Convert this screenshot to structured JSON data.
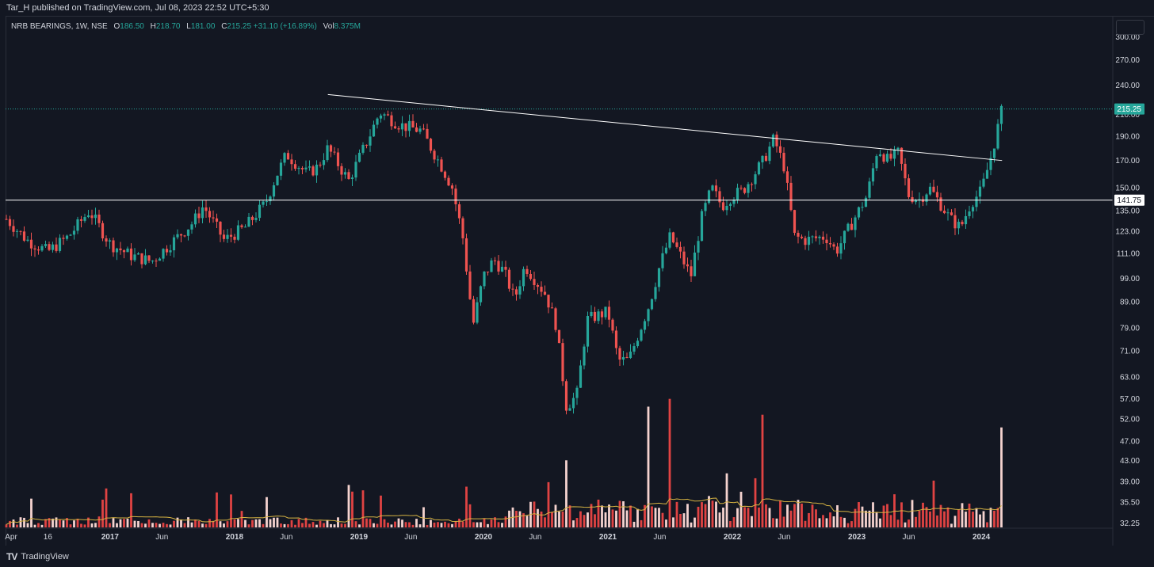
{
  "header": {
    "published_text": "Tar_H published on TradingView.com, Jul 08, 2023 22:52 UTC+5:30"
  },
  "legend": {
    "symbol": "NRB BEARINGS, 1W, NSE",
    "open_label": "O",
    "open": "186.50",
    "high_label": "H",
    "high": "218.70",
    "low_label": "L",
    "low": "181.00",
    "close_label": "C",
    "close": "215.25",
    "change": "+31.10 (+16.89%)",
    "vol_label": "Vol",
    "vol": "8.375M"
  },
  "footer": {
    "brand": "TradingView"
  },
  "chart_data": {
    "type": "candlestick",
    "symbol": "NRB BEARINGS",
    "interval": "1W",
    "exchange": "NSE",
    "scale": "log",
    "ylim": [
      31.5,
      330
    ],
    "price_ticks": [
      "300.00",
      "270.00",
      "240.00",
      "210.00",
      "190.00",
      "170.00",
      "150.00",
      "135.00",
      "123.00",
      "111.00",
      "99.00",
      "89.00",
      "79.00",
      "71.00",
      "63.00",
      "57.00",
      "52.00",
      "47.00",
      "43.00",
      "39.00",
      "35.50",
      "32.25"
    ],
    "x_ticks": [
      "Apr",
      "16",
      "2017",
      "Jun",
      "2018",
      "Jun",
      "2019",
      "Jun",
      "2020",
      "Jun",
      "2021",
      "Jun",
      "2022",
      "Jun",
      "2023",
      "Jun",
      "2024"
    ],
    "last_price": "215.25",
    "horizontal_level": "141.75",
    "trendline": {
      "start": [
        "2018-10",
        230
      ],
      "end": [
        "2024-03",
        170
      ]
    },
    "price_path": [
      [
        "2016-03",
        130
      ],
      [
        "2016-05",
        118
      ],
      [
        "2016-07",
        112
      ],
      [
        "2016-09",
        120
      ],
      [
        "2016-11",
        135
      ],
      [
        "2017-01",
        116
      ],
      [
        "2017-03",
        110
      ],
      [
        "2017-05",
        107
      ],
      [
        "2017-07",
        117
      ],
      [
        "2017-09",
        128
      ],
      [
        "2017-10",
        138
      ],
      [
        "2017-12",
        118
      ],
      [
        "2018-02",
        125
      ],
      [
        "2018-04",
        140
      ],
      [
        "2018-05",
        158
      ],
      [
        "2018-06",
        175
      ],
      [
        "2018-08",
        160
      ],
      [
        "2018-09",
        165
      ],
      [
        "2018-10",
        180
      ],
      [
        "2018-12",
        155
      ],
      [
        "2019-02",
        190
      ],
      [
        "2019-03",
        212
      ],
      [
        "2019-05",
        200
      ],
      [
        "2019-07",
        195
      ],
      [
        "2019-09",
        165
      ],
      [
        "2019-10",
        150
      ],
      [
        "2019-11",
        120
      ],
      [
        "2019-12",
        80
      ],
      [
        "2020-01",
        100
      ],
      [
        "2020-02",
        108
      ],
      [
        "2020-03",
        102
      ],
      [
        "2020-04",
        90
      ],
      [
        "2020-05",
        105
      ],
      [
        "2020-07",
        92
      ],
      [
        "2020-08",
        80
      ],
      [
        "2020-09",
        55
      ],
      [
        "2020-10",
        58
      ],
      [
        "2020-11",
        82
      ],
      [
        "2021-01",
        85
      ],
      [
        "2021-02",
        68
      ],
      [
        "2021-03",
        68
      ],
      [
        "2021-05",
        88
      ],
      [
        "2021-06",
        105
      ],
      [
        "2021-07",
        120
      ],
      [
        "2021-08",
        110
      ],
      [
        "2021-09",
        100
      ],
      [
        "2021-10",
        130
      ],
      [
        "2021-11",
        150
      ],
      [
        "2021-12",
        138
      ],
      [
        "2022-01",
        145
      ],
      [
        "2022-02",
        148
      ],
      [
        "2022-04",
        170
      ],
      [
        "2022-05",
        188
      ],
      [
        "2022-06",
        165
      ],
      [
        "2022-07",
        120
      ],
      [
        "2022-08",
        118
      ],
      [
        "2022-10",
        120
      ],
      [
        "2022-11",
        112
      ],
      [
        "2022-12",
        122
      ],
      [
        "2023-02",
        145
      ],
      [
        "2023-03",
        180
      ],
      [
        "2023-04",
        170
      ],
      [
        "2023-05",
        176
      ],
      [
        "2023-06",
        145
      ],
      [
        "2023-07",
        142
      ],
      [
        "2023-08",
        150
      ],
      [
        "2023-09",
        140
      ],
      [
        "2023-10",
        130
      ],
      [
        "2023-11",
        125
      ],
      [
        "2023-12",
        140
      ],
      [
        "2024-01",
        148
      ],
      [
        "2024-02",
        175
      ],
      [
        "2024-03",
        215
      ]
    ],
    "volume": {
      "peak_bars": [
        [
          "2020-09",
          43
        ],
        [
          "2021-05",
          55
        ],
        [
          "2021-07",
          57
        ],
        [
          "2022-04",
          53
        ],
        [
          "2024-03",
          50
        ]
      ],
      "ma_color": "#d6b342",
      "up_color": "#f5d3cf",
      "down_color": "#e04343"
    },
    "colors": {
      "up": "#26a69a",
      "down": "#ef5350",
      "trendline": "#ffffff",
      "level": "#ffffff",
      "last_price_badge": "#26a69a"
    }
  }
}
